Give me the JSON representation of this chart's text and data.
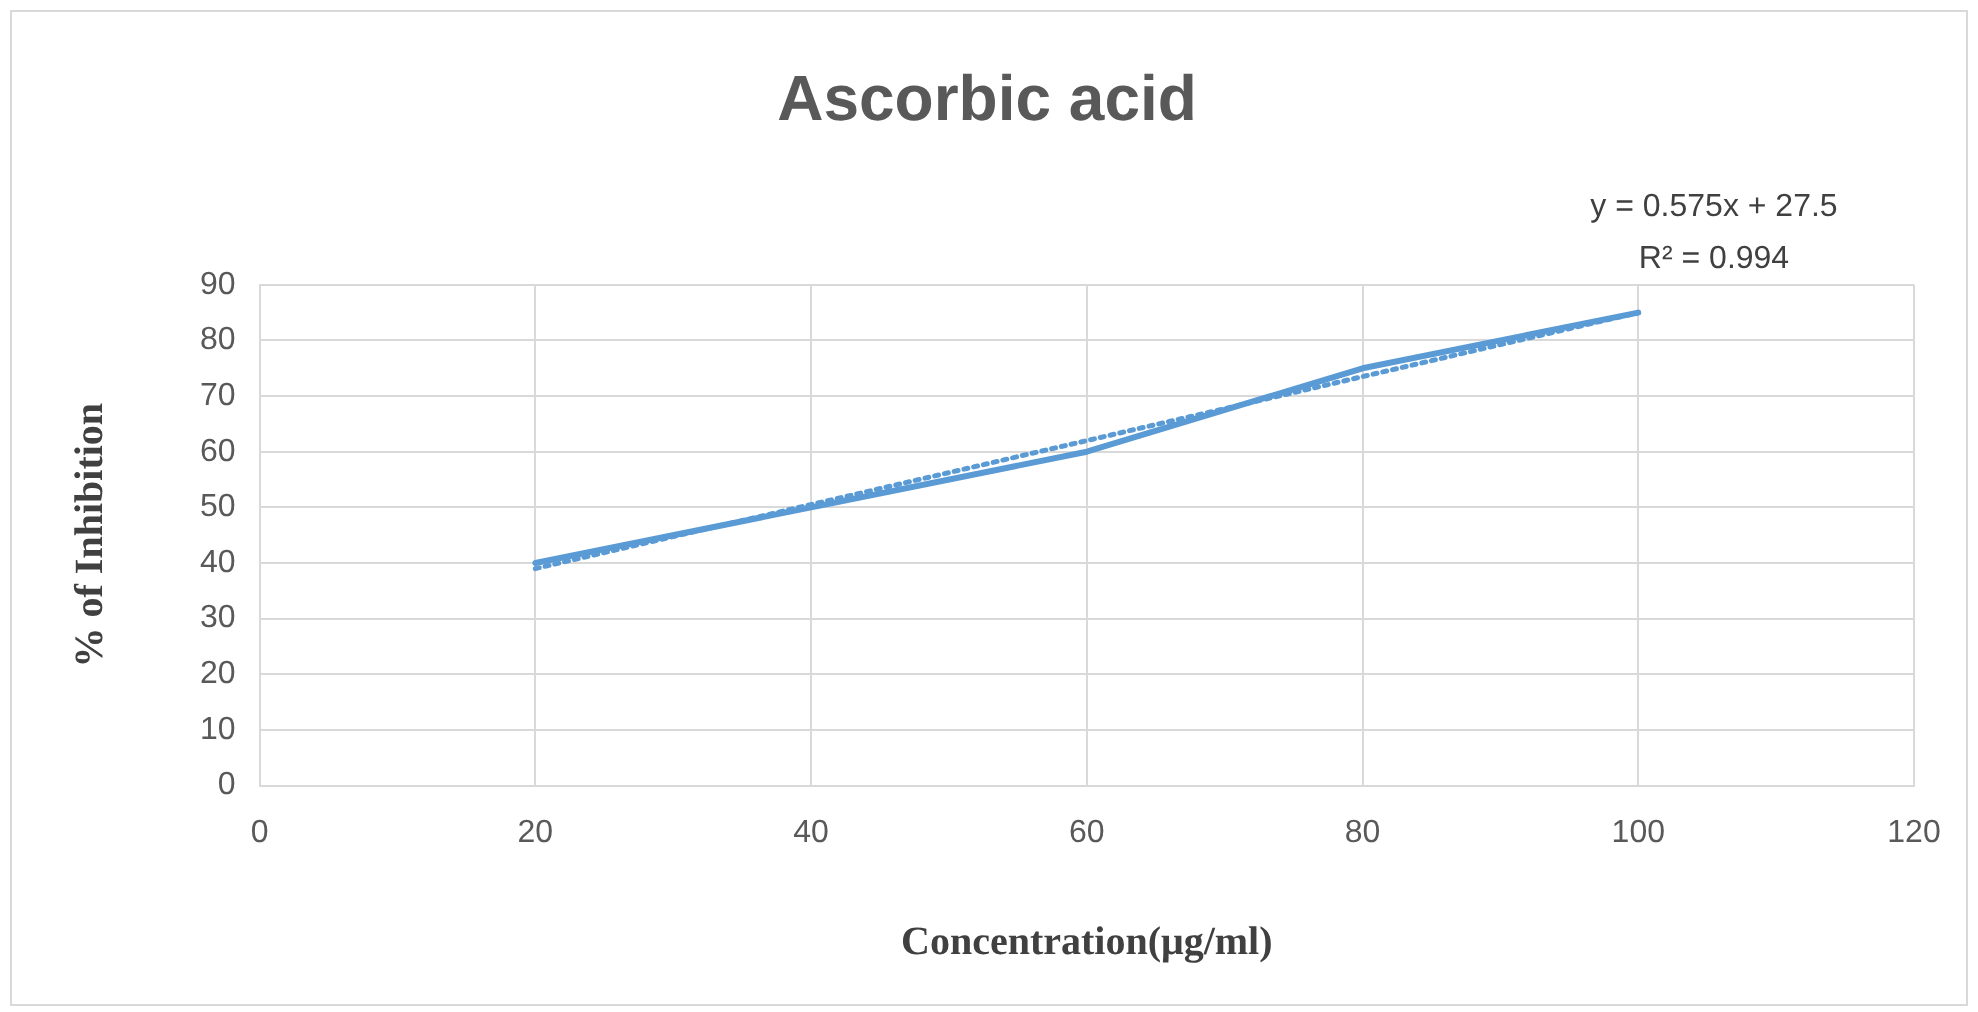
{
  "chart_data": {
    "type": "line",
    "title": "Ascorbic acid",
    "xlabel": "Concentration(μg/ml)",
    "ylabel": "% of Inhibition",
    "x": [
      20,
      40,
      60,
      80,
      100
    ],
    "series": [
      {
        "color": "#5b9bd5",
        "values": [
          40,
          50,
          60,
          75,
          85
        ],
        "line_style": "solid"
      },
      {
        "type": "line",
        "color": "#5b9bd5",
        "x": [
          20,
          100
        ],
        "values": [
          39,
          85
        ],
        "line_style": "dotted"
      }
    ],
    "annotations": [
      "y = 0.575x + 27.5",
      "R² = 0.994"
    ],
    "xlim": [
      0,
      120
    ],
    "xticks": [
      0,
      20,
      40,
      60,
      80,
      100,
      120
    ],
    "ylim": [
      0,
      90
    ],
    "yticks": [
      0,
      10,
      20,
      30,
      40,
      50,
      60,
      70,
      80,
      90
    ],
    "grid": true,
    "legend": false,
    "marker": "none"
  }
}
